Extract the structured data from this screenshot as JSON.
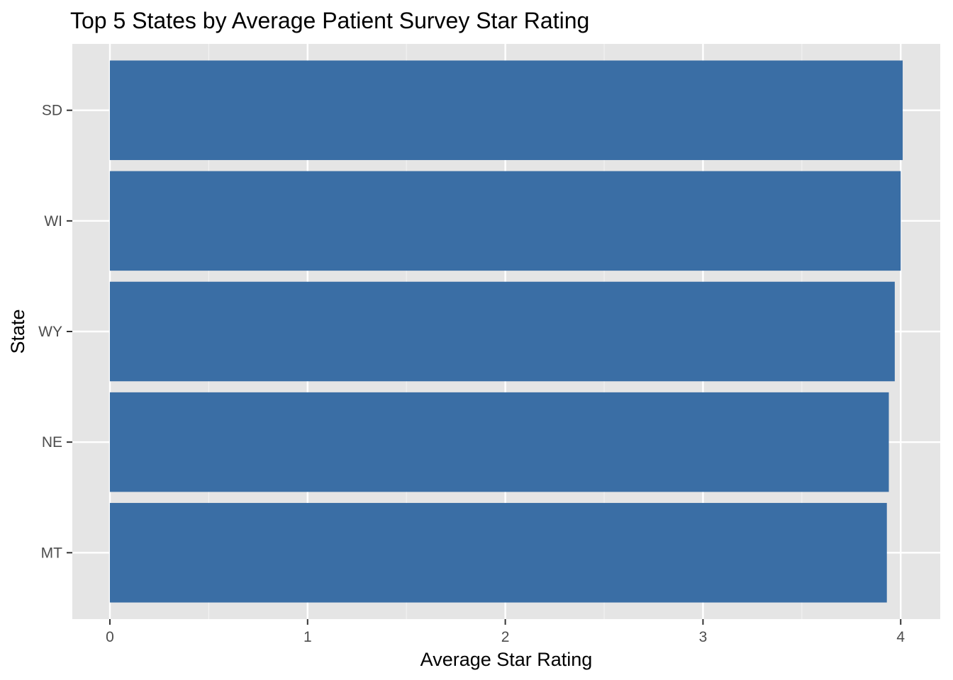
{
  "chart_data": {
    "type": "bar",
    "orientation": "horizontal",
    "title": "Top 5 States by Average Patient Survey Star Rating",
    "xlabel": "Average Star Rating",
    "ylabel": "State",
    "categories": [
      "MT",
      "NE",
      "WY",
      "WI",
      "SD"
    ],
    "values": [
      3.93,
      3.94,
      3.97,
      4.0,
      4.01
    ],
    "xlim": [
      -0.19,
      4.2
    ],
    "x_ticks": [
      "0",
      "1",
      "2",
      "3",
      "4"
    ],
    "grid": true,
    "legend": "none",
    "colors": {
      "bar": "#3A6EA5",
      "panel_background": "#E5E5E5",
      "grid_major": "#FFFFFF",
      "grid_minor": "#F2F2F2"
    }
  }
}
